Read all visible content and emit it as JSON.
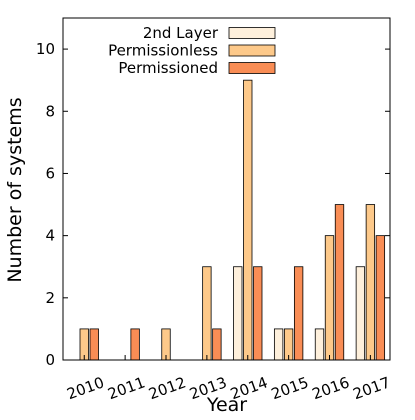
{
  "chart_data": {
    "type": "bar",
    "xlabel": "Year",
    "ylabel": "Number of systems",
    "categories": [
      "2010",
      "2011",
      "2012",
      "2013",
      "2014",
      "2015",
      "2016",
      "2017"
    ],
    "ylim": [
      0,
      11
    ],
    "yticks": [
      0,
      2,
      4,
      6,
      8,
      10
    ],
    "grid": false,
    "legend_position": "top",
    "series": [
      {
        "name": "2nd Layer",
        "color": "#fef0dc",
        "values": [
          0,
          0,
          0,
          0,
          3,
          1,
          1,
          3
        ]
      },
      {
        "name": "Permissionless",
        "color": "#fdc98a",
        "values": [
          1,
          0,
          1,
          3,
          9,
          1,
          4,
          5
        ]
      },
      {
        "name": "Permissioned",
        "color": "#f98d55",
        "values": [
          1,
          1,
          0,
          1,
          3,
          3,
          5,
          4
        ]
      }
    ]
  }
}
